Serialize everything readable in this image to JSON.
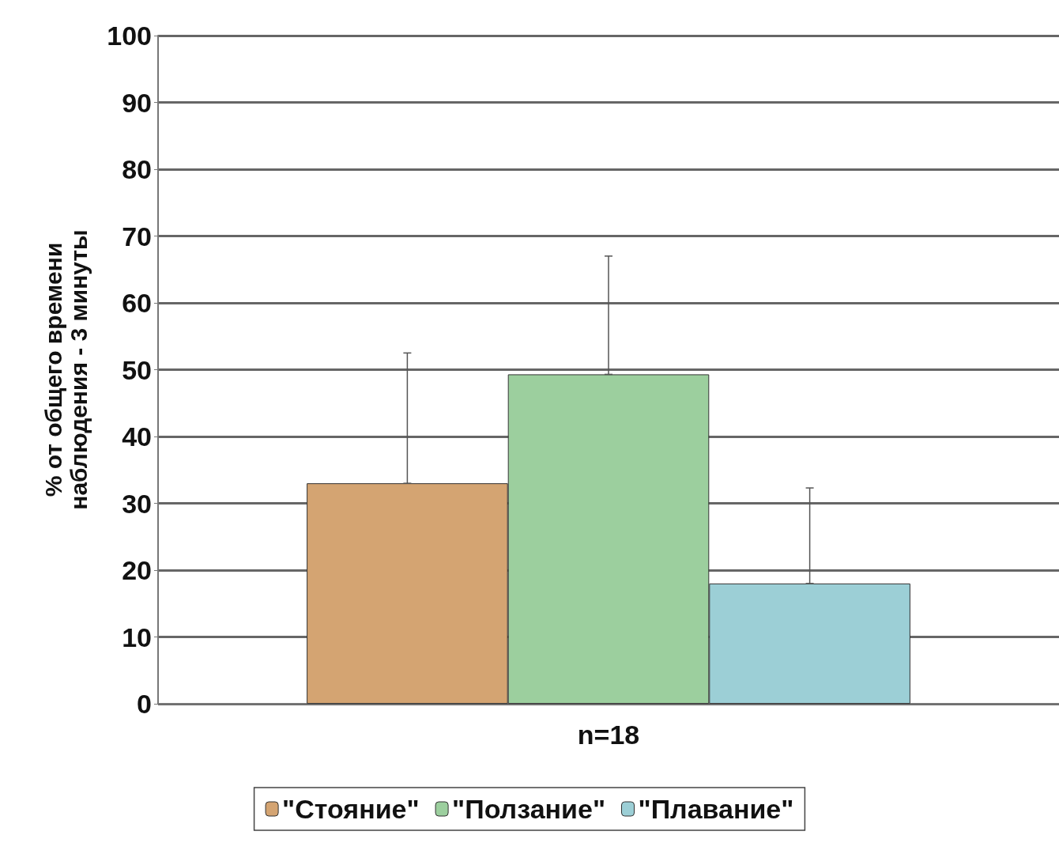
{
  "chart_data": {
    "type": "bar",
    "ylabel": "% от общего времени\nнаблюдения - 3 минуты",
    "categories": [
      "n=18"
    ],
    "series": [
      {
        "name": "\"Стояние\"",
        "color": "#d4a472",
        "values": [
          33
        ],
        "errors": [
          [
            33,
            52.5
          ]
        ]
      },
      {
        "name": "\"Ползание\"",
        "color": "#9ccf9e",
        "values": [
          49.3
        ],
        "errors": [
          [
            49.3,
            67
          ]
        ]
      },
      {
        "name": "\"Плавание\"",
        "color": "#9ccfd6",
        "values": [
          18
        ],
        "errors": [
          [
            18,
            32.3
          ]
        ]
      }
    ],
    "ylim": [
      0,
      100
    ],
    "yticks": [
      0,
      10,
      20,
      30,
      40,
      50,
      60,
      70,
      80,
      90,
      100
    ],
    "grid": "y",
    "legend": "bottom"
  }
}
